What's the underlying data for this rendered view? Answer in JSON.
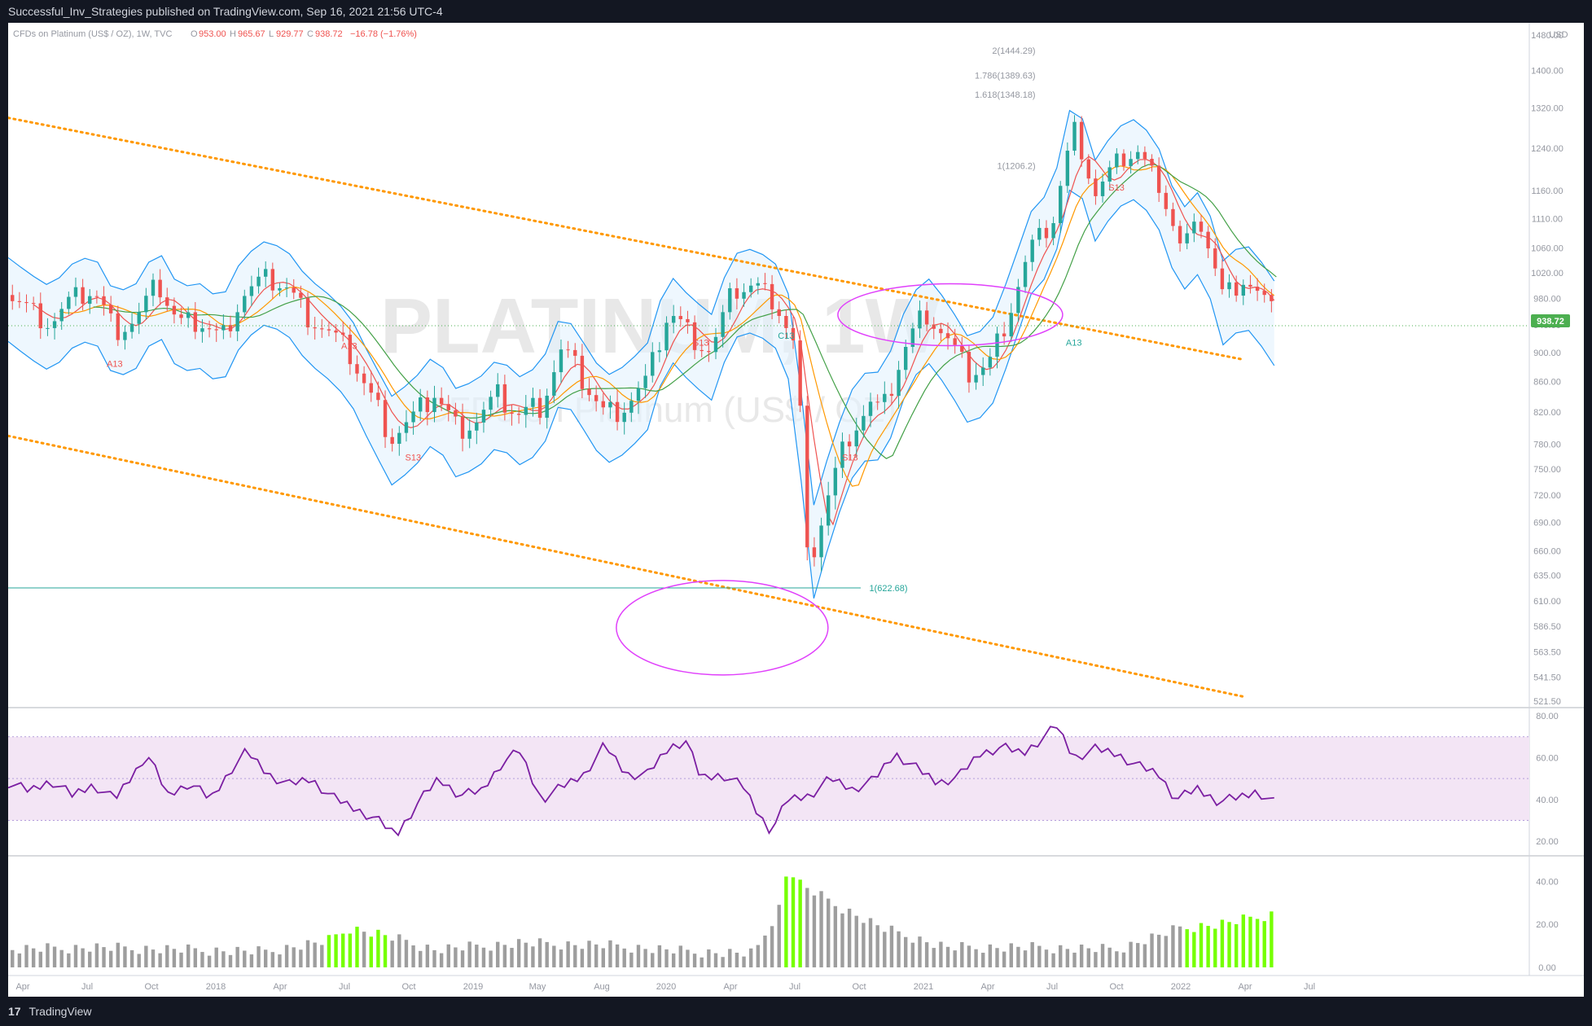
{
  "header": {
    "publish_line": "Successful_Inv_Strategies published on TradingView.com, Sep 16, 2021 21:56 UTC-4"
  },
  "legend": {
    "symbol_line": "CFDs on Platinum (US$ / OZ), 1W, TVC",
    "o_label": "O",
    "o_value": "953.00",
    "h_label": "H",
    "h_value": "965.67",
    "l_label": "L",
    "l_value": "929.77",
    "c_label": "C",
    "c_value": "938.72",
    "change": "−16.78 (−1.76%)"
  },
  "watermark": {
    "main": "PLATINUM, 1W",
    "sub": "CFDs on Platinum (US$ / OZ)"
  },
  "currency_label": "USD",
  "price_label": "938.72",
  "footer": {
    "logo_glyph": "17",
    "brand": "TradingView"
  },
  "colors": {
    "up": "#26a69a",
    "down": "#ef5350",
    "accent_up_vol": "#76ff03",
    "vol": "#9e9e9e",
    "trend": "#ff9800",
    "channel": "#2196f3",
    "rsi": "#7b1fa2",
    "ellipse": "#e040fb"
  },
  "chart_data": [
    {
      "type": "line",
      "name": "price",
      "x_ticks": [
        "Apr",
        "Jul",
        "Oct",
        "2018",
        "Apr",
        "Jul",
        "Oct",
        "2019",
        "May",
        "Aug",
        "2020",
        "Apr",
        "Jul",
        "Oct",
        "2021",
        "Apr",
        "Jul",
        "Oct",
        "2022",
        "Apr",
        "Jul"
      ],
      "y_ticks": [
        "521.50",
        "541.50",
        "563.50",
        "586.50",
        "610.00",
        "635.00",
        "660.00",
        "690.00",
        "720.00",
        "750.00",
        "780.00",
        "820.00",
        "860.00",
        "900.00",
        "940.00",
        "980.00",
        "1020.00",
        "1060.00",
        "1110.00",
        "1160.00",
        "1240.00",
        "1320.00",
        "1400.00",
        "1480.00"
      ],
      "ylim": [
        521.5,
        1480
      ],
      "last_price": 938.72,
      "close_path": [
        {
          "t": 0,
          "v": 985
        },
        {
          "t": 10,
          "v": 960
        },
        {
          "t": 20,
          "v": 940
        },
        {
          "t": 30,
          "v": 975
        },
        {
          "t": 40,
          "v": 990
        },
        {
          "t": 50,
          "v": 930
        },
        {
          "t": 60,
          "v": 945
        },
        {
          "t": 70,
          "v": 1000
        },
        {
          "t": 80,
          "v": 940
        },
        {
          "t": 90,
          "v": 945
        },
        {
          "t": 100,
          "v": 920
        },
        {
          "t": 110,
          "v": 985
        },
        {
          "t": 120,
          "v": 1010
        },
        {
          "t": 130,
          "v": 1000
        },
        {
          "t": 140,
          "v": 955
        },
        {
          "t": 150,
          "v": 930
        },
        {
          "t": 160,
          "v": 900
        },
        {
          "t": 170,
          "v": 840
        },
        {
          "t": 180,
          "v": 790
        },
        {
          "t": 190,
          "v": 810
        },
        {
          "t": 200,
          "v": 845
        },
        {
          "t": 210,
          "v": 800
        },
        {
          "t": 220,
          "v": 810
        },
        {
          "t": 230,
          "v": 840
        },
        {
          "t": 240,
          "v": 815
        },
        {
          "t": 250,
          "v": 830
        },
        {
          "t": 260,
          "v": 905
        },
        {
          "t": 270,
          "v": 860
        },
        {
          "t": 280,
          "v": 815
        },
        {
          "t": 290,
          "v": 830
        },
        {
          "t": 300,
          "v": 860
        },
        {
          "t": 310,
          "v": 960
        },
        {
          "t": 320,
          "v": 925
        },
        {
          "t": 330,
          "v": 900
        },
        {
          "t": 340,
          "v": 990
        },
        {
          "t": 350,
          "v": 1000
        },
        {
          "t": 360,
          "v": 975
        },
        {
          "t": 370,
          "v": 900
        },
        {
          "t": 375,
          "v": 640
        },
        {
          "t": 385,
          "v": 720
        },
        {
          "t": 395,
          "v": 795
        },
        {
          "t": 405,
          "v": 830
        },
        {
          "t": 410,
          "v": 815
        },
        {
          "t": 420,
          "v": 900
        },
        {
          "t": 430,
          "v": 960
        },
        {
          "t": 440,
          "v": 920
        },
        {
          "t": 450,
          "v": 870
        },
        {
          "t": 460,
          "v": 880
        },
        {
          "t": 470,
          "v": 960
        },
        {
          "t": 480,
          "v": 1060
        },
        {
          "t": 490,
          "v": 1100
        },
        {
          "t": 500,
          "v": 1280
        },
        {
          "t": 510,
          "v": 1150
        },
        {
          "t": 520,
          "v": 1210
        },
        {
          "t": 530,
          "v": 1230
        },
        {
          "t": 540,
          "v": 1170
        },
        {
          "t": 550,
          "v": 1060
        },
        {
          "t": 560,
          "v": 1100
        },
        {
          "t": 570,
          "v": 980
        },
        {
          "t": 580,
          "v": 1010
        },
        {
          "t": 590,
          "v": 970
        },
        {
          "t": 596,
          "v": 938.72
        }
      ],
      "levels": [
        {
          "label": "1(622.68)",
          "value": 622.68
        }
      ],
      "fib_labels": [
        {
          "label": "2(1444.29)",
          "value": 1444.29
        },
        {
          "label": "1.786(1389.63)",
          "value": 1389.63
        },
        {
          "label": "1.618(1348.18)",
          "value": 1348.18
        },
        {
          "label": "1(1206.2)",
          "value": 1206.2
        }
      ],
      "seq_labels": [
        "A13",
        "S13",
        "A13",
        "S13",
        "C13",
        "S13",
        "S13",
        "A13"
      ]
    },
    {
      "type": "line",
      "name": "rsi",
      "y_ticks": [
        "20.00",
        "40.00",
        "60.00",
        "80.00"
      ],
      "ylim": [
        15,
        82
      ],
      "band": [
        30,
        70
      ],
      "mid": 50,
      "path": [
        {
          "t": 0,
          "v": 48
        },
        {
          "t": 10,
          "v": 44
        },
        {
          "t": 20,
          "v": 49
        },
        {
          "t": 30,
          "v": 42
        },
        {
          "t": 40,
          "v": 47
        },
        {
          "t": 50,
          "v": 40
        },
        {
          "t": 60,
          "v": 54
        },
        {
          "t": 65,
          "v": 62
        },
        {
          "t": 75,
          "v": 42
        },
        {
          "t": 85,
          "v": 48
        },
        {
          "t": 95,
          "v": 40
        },
        {
          "t": 105,
          "v": 55
        },
        {
          "t": 112,
          "v": 63
        },
        {
          "t": 122,
          "v": 52
        },
        {
          "t": 132,
          "v": 47
        },
        {
          "t": 142,
          "v": 50
        },
        {
          "t": 152,
          "v": 41
        },
        {
          "t": 162,
          "v": 36
        },
        {
          "t": 172,
          "v": 31
        },
        {
          "t": 182,
          "v": 23
        },
        {
          "t": 192,
          "v": 38
        },
        {
          "t": 202,
          "v": 50
        },
        {
          "t": 212,
          "v": 42
        },
        {
          "t": 222,
          "v": 44
        },
        {
          "t": 232,
          "v": 58
        },
        {
          "t": 240,
          "v": 63
        },
        {
          "t": 250,
          "v": 40
        },
        {
          "t": 260,
          "v": 46
        },
        {
          "t": 270,
          "v": 52
        },
        {
          "t": 280,
          "v": 66
        },
        {
          "t": 290,
          "v": 52
        },
        {
          "t": 300,
          "v": 52
        },
        {
          "t": 310,
          "v": 65
        },
        {
          "t": 318,
          "v": 68
        },
        {
          "t": 325,
          "v": 50
        },
        {
          "t": 335,
          "v": 52
        },
        {
          "t": 345,
          "v": 46
        },
        {
          "t": 352,
          "v": 33
        },
        {
          "t": 358,
          "v": 25
        },
        {
          "t": 366,
          "v": 40
        },
        {
          "t": 376,
          "v": 42
        },
        {
          "t": 386,
          "v": 50
        },
        {
          "t": 396,
          "v": 45
        },
        {
          "t": 406,
          "v": 49
        },
        {
          "t": 416,
          "v": 62
        },
        {
          "t": 426,
          "v": 55
        },
        {
          "t": 436,
          "v": 48
        },
        {
          "t": 446,
          "v": 51
        },
        {
          "t": 456,
          "v": 62
        },
        {
          "t": 466,
          "v": 65
        },
        {
          "t": 476,
          "v": 62
        },
        {
          "t": 486,
          "v": 70
        },
        {
          "t": 492,
          "v": 75
        },
        {
          "t": 500,
          "v": 60
        },
        {
          "t": 510,
          "v": 64
        },
        {
          "t": 520,
          "v": 62
        },
        {
          "t": 530,
          "v": 56
        },
        {
          "t": 540,
          "v": 52
        },
        {
          "t": 548,
          "v": 40
        },
        {
          "t": 558,
          "v": 45
        },
        {
          "t": 568,
          "v": 39
        },
        {
          "t": 578,
          "v": 41
        },
        {
          "t": 586,
          "v": 44
        },
        {
          "t": 596,
          "v": 37
        }
      ]
    },
    {
      "type": "bar",
      "name": "volume",
      "y_ticks": [
        "0.00",
        "20.00",
        "40.00"
      ],
      "ylim": [
        0,
        50
      ],
      "highlight_ranges": [
        [
          148,
          165
        ],
        [
          170,
          178
        ],
        [
          362,
          372
        ],
        [
          550,
          596
        ]
      ],
      "envelope": [
        {
          "t": 0,
          "v": 8
        },
        {
          "t": 40,
          "v": 9
        },
        {
          "t": 80,
          "v": 8
        },
        {
          "t": 120,
          "v": 7
        },
        {
          "t": 150,
          "v": 12
        },
        {
          "t": 160,
          "v": 18
        },
        {
          "t": 175,
          "v": 15
        },
        {
          "t": 200,
          "v": 8
        },
        {
          "t": 240,
          "v": 11
        },
        {
          "t": 280,
          "v": 10
        },
        {
          "t": 320,
          "v": 7
        },
        {
          "t": 350,
          "v": 6
        },
        {
          "t": 362,
          "v": 28
        },
        {
          "t": 366,
          "v": 47
        },
        {
          "t": 372,
          "v": 38
        },
        {
          "t": 390,
          "v": 28
        },
        {
          "t": 410,
          "v": 18
        },
        {
          "t": 440,
          "v": 9
        },
        {
          "t": 480,
          "v": 9
        },
        {
          "t": 520,
          "v": 8
        },
        {
          "t": 550,
          "v": 18
        },
        {
          "t": 570,
          "v": 20
        },
        {
          "t": 596,
          "v": 25
        }
      ]
    }
  ]
}
